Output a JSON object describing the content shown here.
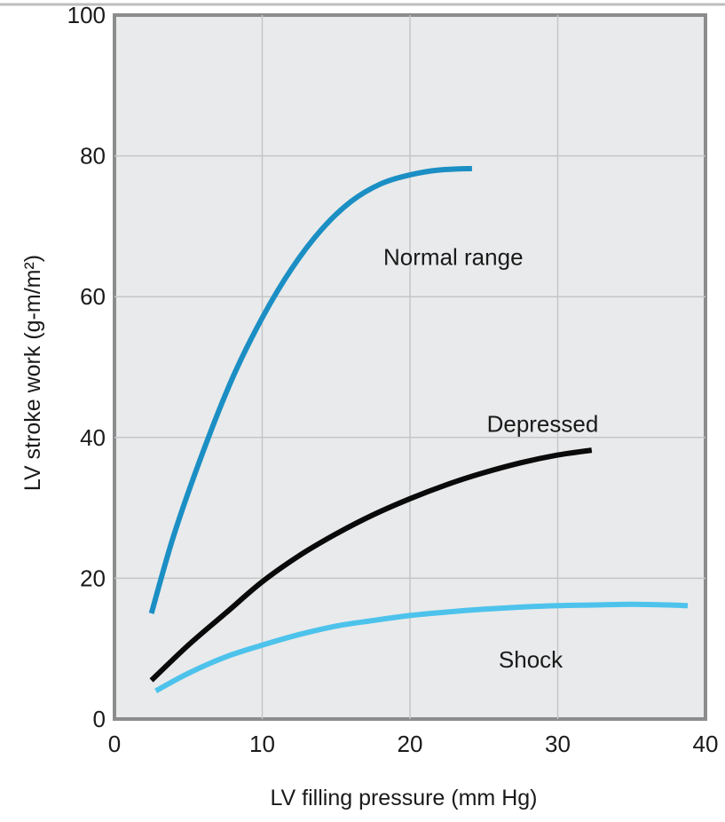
{
  "chart_data": {
    "type": "line",
    "xlabel": "LV filling pressure (mm Hg)",
    "ylabel": "LV stroke work (g-m/m²)",
    "xlim": [
      0,
      40
    ],
    "ylim": [
      0,
      100
    ],
    "xticks": [
      0,
      10,
      20,
      30,
      40
    ],
    "yticks": [
      0,
      20,
      40,
      60,
      80,
      100
    ],
    "x_tick_labels": [
      "0",
      "10",
      "20",
      "30",
      "40"
    ],
    "y_tick_labels": [
      "0",
      "20",
      "40",
      "60",
      "80",
      "100"
    ],
    "grid": true,
    "series": [
      {
        "name": "Normal range",
        "color": "#1b8fc4",
        "points": [
          [
            2.5,
            15
          ],
          [
            4,
            26
          ],
          [
            6,
            38
          ],
          [
            8,
            48.5
          ],
          [
            10,
            57
          ],
          [
            12,
            64
          ],
          [
            14,
            69.5
          ],
          [
            16,
            73.5
          ],
          [
            18,
            76
          ],
          [
            20,
            77.3
          ],
          [
            22,
            78
          ],
          [
            24.2,
            78.2
          ]
        ]
      },
      {
        "name": "Depressed",
        "color": "#0a0a0a",
        "points": [
          [
            2.5,
            5.5
          ],
          [
            5,
            10.5
          ],
          [
            7.5,
            15
          ],
          [
            10,
            19.5
          ],
          [
            12.5,
            23.2
          ],
          [
            15,
            26.3
          ],
          [
            17.5,
            29
          ],
          [
            20,
            31.3
          ],
          [
            22.5,
            33.3
          ],
          [
            25,
            35
          ],
          [
            27.5,
            36.4
          ],
          [
            30,
            37.5
          ],
          [
            32.3,
            38.2
          ]
        ]
      },
      {
        "name": "Shock",
        "color": "#4dc3ec",
        "points": [
          [
            2.8,
            4
          ],
          [
            5,
            6.5
          ],
          [
            7.5,
            8.8
          ],
          [
            10,
            10.5
          ],
          [
            12.5,
            12
          ],
          [
            15,
            13.2
          ],
          [
            17.5,
            14
          ],
          [
            20,
            14.7
          ],
          [
            22.5,
            15.2
          ],
          [
            25,
            15.6
          ],
          [
            27.5,
            15.9
          ],
          [
            30,
            16.1
          ],
          [
            32.5,
            16.2
          ],
          [
            35,
            16.3
          ],
          [
            37.5,
            16.2
          ],
          [
            38.8,
            16.1
          ]
        ]
      }
    ]
  }
}
